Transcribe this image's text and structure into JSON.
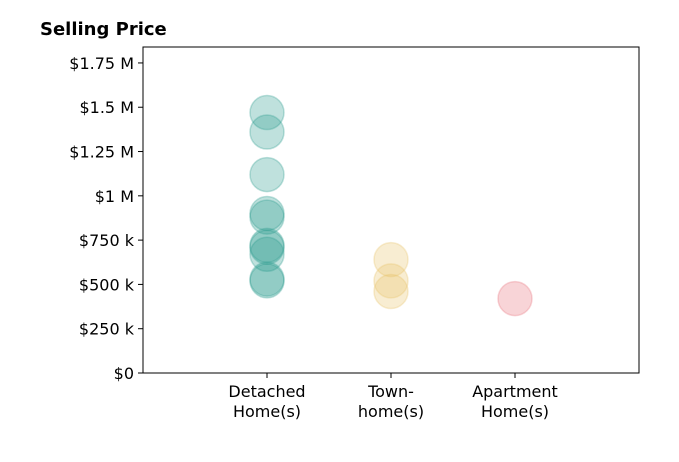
{
  "chart_data": {
    "type": "scatter",
    "title": "Selling Price",
    "xlabel": "",
    "ylabel": "",
    "categories": [
      [
        "Detached",
        "Home(s)"
      ],
      [
        "Town-",
        "home(s)"
      ],
      [
        "Apartment",
        "Home(s)"
      ]
    ],
    "xlim": [
      -1,
      3
    ],
    "ylim": [
      0,
      1840000
    ],
    "yticks": [
      0,
      250000,
      500000,
      750000,
      1000000,
      1250000,
      1500000,
      1750000
    ],
    "ytick_labels": [
      "$0",
      "$250 k",
      "$500 k",
      "$750 k",
      "$1 M",
      "$1.25 M",
      "$1.5 M",
      "$1.75 M"
    ],
    "grid": false,
    "marker_alpha": 0.3,
    "series": [
      {
        "category_index": 0,
        "color": "#2a9d8f",
        "values": [
          1470000,
          1360000,
          1120000,
          900000,
          880000,
          720000,
          710000,
          670000,
          530000,
          520000
        ]
      },
      {
        "category_index": 1,
        "color": "#e9c46a",
        "values": [
          640000,
          520000,
          460000
        ]
      },
      {
        "category_index": 2,
        "color": "#e76f7a",
        "values": [
          420000
        ]
      }
    ]
  }
}
